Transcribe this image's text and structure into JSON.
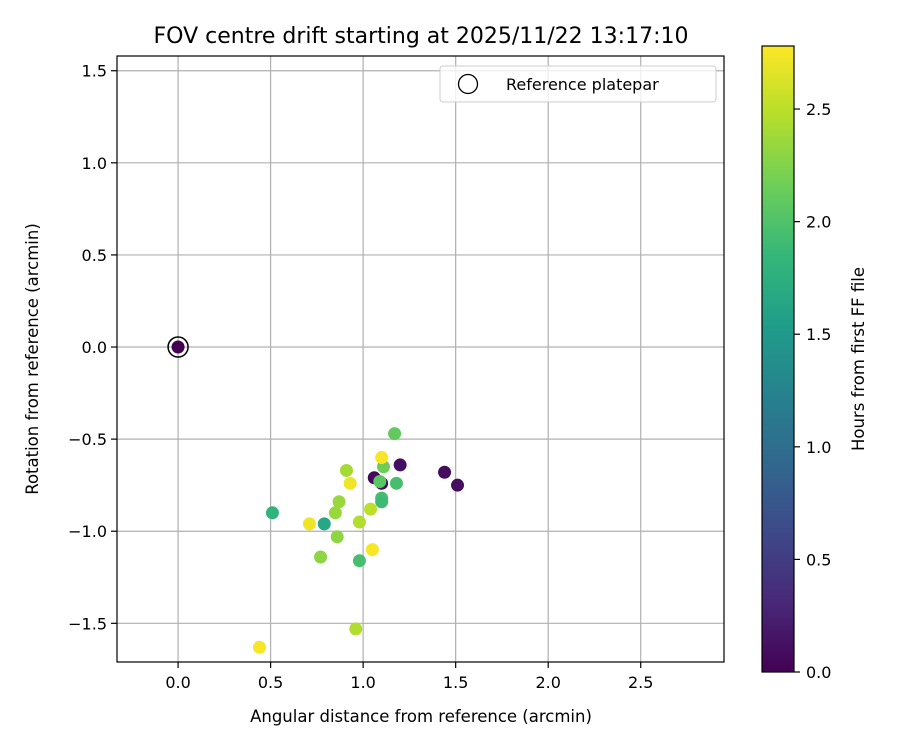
{
  "chart_data": {
    "type": "scatter",
    "title": "FOV centre drift starting at 2025/11/22 13:17:10",
    "xlabel": "Angular distance from reference (arcmin)",
    "ylabel": "Rotation from reference (arcmin)",
    "xlim": [
      -0.33,
      2.95
    ],
    "ylim": [
      -1.71,
      1.58
    ],
    "xticks": [
      0.0,
      0.5,
      1.0,
      1.5,
      2.0,
      2.5
    ],
    "yticks": [
      -1.5,
      -1.0,
      -0.5,
      0.0,
      0.5,
      1.0,
      1.5
    ],
    "grid": true,
    "legend": {
      "position": "top-right",
      "entries": [
        "Reference platepar"
      ]
    },
    "reference_point": {
      "x": 0.0,
      "y": 0.0,
      "h": 0.0
    },
    "colorbar": {
      "label": "Hours from first FF file",
      "range": [
        0.0,
        2.78
      ],
      "ticks": [
        0.0,
        0.5,
        1.0,
        1.5,
        2.0,
        2.5
      ],
      "colormap": [
        "#440154",
        "#482878",
        "#3e4989",
        "#31688e",
        "#26828e",
        "#1f9e89",
        "#35b779",
        "#6ece58",
        "#b5de2b",
        "#fde725"
      ]
    },
    "points": [
      {
        "x": 0.0,
        "y": 0.0,
        "h": 0.0
      },
      {
        "x": 1.06,
        "y": -0.71,
        "h": 0.05
      },
      {
        "x": 1.1,
        "y": -0.74,
        "h": 0.1
      },
      {
        "x": 1.2,
        "y": -0.64,
        "h": 0.12
      },
      {
        "x": 1.44,
        "y": -0.68,
        "h": 0.08
      },
      {
        "x": 1.51,
        "y": -0.75,
        "h": 0.1
      },
      {
        "x": 0.51,
        "y": -0.9,
        "h": 1.8
      },
      {
        "x": 0.79,
        "y": -0.96,
        "h": 1.65
      },
      {
        "x": 1.17,
        "y": -0.47,
        "h": 2.1
      },
      {
        "x": 1.18,
        "y": -0.74,
        "h": 1.95
      },
      {
        "x": 1.1,
        "y": -0.82,
        "h": 1.95
      },
      {
        "x": 1.1,
        "y": -0.84,
        "h": 1.9
      },
      {
        "x": 1.09,
        "y": -0.73,
        "h": 2.05
      },
      {
        "x": 1.11,
        "y": -0.65,
        "h": 2.15
      },
      {
        "x": 0.98,
        "y": -1.16,
        "h": 1.95
      },
      {
        "x": 0.91,
        "y": -0.67,
        "h": 2.4
      },
      {
        "x": 0.87,
        "y": -0.84,
        "h": 2.35
      },
      {
        "x": 0.85,
        "y": -0.9,
        "h": 2.35
      },
      {
        "x": 0.86,
        "y": -1.03,
        "h": 2.3
      },
      {
        "x": 0.77,
        "y": -1.14,
        "h": 2.3
      },
      {
        "x": 0.98,
        "y": -0.95,
        "h": 2.45
      },
      {
        "x": 1.04,
        "y": -0.88,
        "h": 2.5
      },
      {
        "x": 0.96,
        "y": -1.53,
        "h": 2.45
      },
      {
        "x": 0.93,
        "y": -0.74,
        "h": 2.72
      },
      {
        "x": 1.1,
        "y": -0.6,
        "h": 2.75
      },
      {
        "x": 0.71,
        "y": -0.96,
        "h": 2.72
      },
      {
        "x": 1.05,
        "y": -1.1,
        "h": 2.75
      },
      {
        "x": 0.44,
        "y": -1.63,
        "h": 2.75
      }
    ]
  }
}
